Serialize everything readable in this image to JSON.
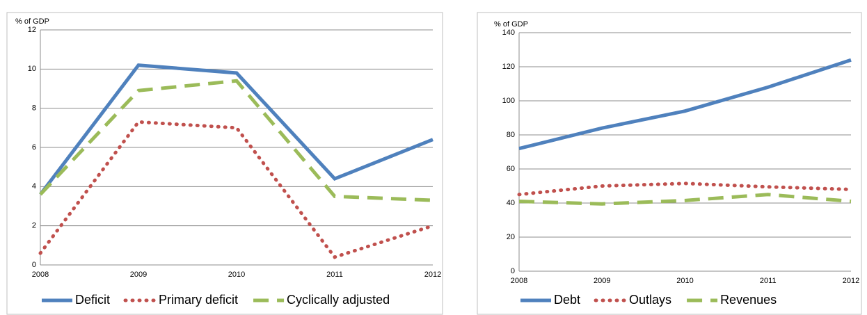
{
  "chart_data": [
    {
      "type": "line",
      "y_label": "% of GDP",
      "categories": [
        "2008",
        "2009",
        "2010",
        "2011",
        "2012"
      ],
      "ylim": [
        0,
        12
      ],
      "yticks": [
        0,
        2,
        4,
        6,
        8,
        10,
        12
      ],
      "grid": true,
      "series": [
        {
          "name": "Deficit",
          "color": "#4f81bd",
          "style": "solid",
          "values": [
            3.6,
            10.2,
            9.8,
            4.4,
            6.4
          ]
        },
        {
          "name": "Primary deficit",
          "color": "#c0504d",
          "style": "dotted",
          "values": [
            0.6,
            7.3,
            7.0,
            0.4,
            2.0
          ]
        },
        {
          "name": "Cyclically adjusted",
          "color": "#9bbb59",
          "style": "dashed",
          "values": [
            3.6,
            8.9,
            9.4,
            3.5,
            3.3
          ]
        }
      ]
    },
    {
      "type": "line",
      "y_label": "% of GDP",
      "categories": [
        "2008",
        "2009",
        "2010",
        "2011",
        "2012"
      ],
      "ylim": [
        0,
        140
      ],
      "yticks": [
        0,
        20,
        40,
        60,
        80,
        100,
        120,
        140
      ],
      "grid": true,
      "series": [
        {
          "name": "Debt",
          "color": "#4f81bd",
          "style": "solid",
          "values": [
            72,
            84,
            94,
            108,
            124
          ]
        },
        {
          "name": "Outlays",
          "color": "#c0504d",
          "style": "dotted",
          "values": [
            45,
            50,
            51.5,
            49.5,
            48
          ]
        },
        {
          "name": "Revenues",
          "color": "#9bbb59",
          "style": "dashed",
          "values": [
            41,
            39.5,
            41.5,
            45,
            41
          ]
        }
      ]
    }
  ]
}
